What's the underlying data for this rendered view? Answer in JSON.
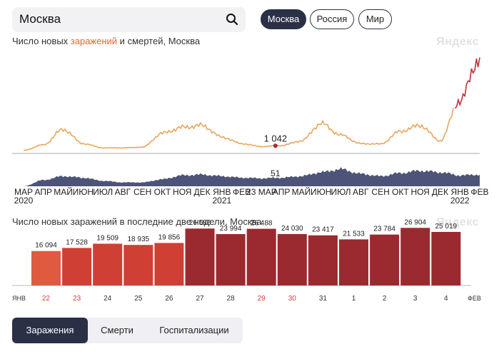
{
  "search": {
    "value": "Москва"
  },
  "region_buttons": [
    {
      "label": "Москва",
      "active": true
    },
    {
      "label": "Россия",
      "active": false
    },
    {
      "label": "Мир",
      "active": false
    }
  ],
  "main_chart": {
    "title_prefix": "Число новых ",
    "title_highlight": "заражений",
    "title_middle": " и ",
    "title_bold": "смертей",
    "title_suffix": ", Москва",
    "watermark": "Яндекс",
    "infection_marker_label": "1 042",
    "death_marker_label": "51",
    "infection_color": "#e8a65c",
    "infection_recent_color": "#c0303a",
    "death_color": "#4d5478",
    "month_labels": [
      "МАР",
      "АПР",
      "МАЙ",
      "ИЮН",
      "ИЮЛ",
      "АВГ",
      "СЕН",
      "ОКТ",
      "НОЯ",
      "ДЕК",
      "ЯНВ",
      "ФЕВ",
      "МАР",
      "АПР",
      "МАЙ",
      "ИЮН",
      "ИЮЛ",
      "АВГ",
      "СЕН",
      "ОКТ",
      "НОЯ",
      "ДЕК",
      "ЯНВ",
      "ФЕВ"
    ],
    "marker_date_label": "23 МАР",
    "year_labels": [
      "2020",
      "2021",
      "2022"
    ]
  },
  "chart_data": [
    {
      "type": "area",
      "title": "Число новых заражений и смертей, Москва",
      "xlabel": "",
      "ylabel": "",
      "series": [
        {
          "name": "заражений",
          "approximate_monthly_values": [
            {
              "x": "2020-03",
              "y": 50
            },
            {
              "x": "2020-04",
              "y": 1500
            },
            {
              "x": "2020-05",
              "y": 5500
            },
            {
              "x": "2020-06",
              "y": 1800
            },
            {
              "x": "2020-07",
              "y": 700
            },
            {
              "x": "2020-08",
              "y": 700
            },
            {
              "x": "2020-09",
              "y": 900
            },
            {
              "x": "2020-10",
              "y": 4500
            },
            {
              "x": "2020-11",
              "y": 6000
            },
            {
              "x": "2020-12",
              "y": 6500
            },
            {
              "x": "2021-01",
              "y": 3500
            },
            {
              "x": "2021-02",
              "y": 1800
            },
            {
              "x": "2021-03",
              "y": 1042
            },
            {
              "x": "2021-04",
              "y": 1300
            },
            {
              "x": "2021-05",
              "y": 2500
            },
            {
              "x": "2021-06",
              "y": 7000
            },
            {
              "x": "2021-07",
              "y": 4000
            },
            {
              "x": "2021-08",
              "y": 1800
            },
            {
              "x": "2021-09",
              "y": 1700
            },
            {
              "x": "2021-10",
              "y": 5000
            },
            {
              "x": "2021-11",
              "y": 6500
            },
            {
              "x": "2021-12",
              "y": 2500
            },
            {
              "x": "2022-01",
              "y": 13000
            },
            {
              "x": "2022-02",
              "y": 24000
            }
          ]
        },
        {
          "name": "смертей",
          "approximate_monthly_values": [
            {
              "x": "2020-03",
              "y": 0
            },
            {
              "x": "2020-04",
              "y": 40
            },
            {
              "x": "2020-05",
              "y": 65
            },
            {
              "x": "2020-06",
              "y": 55
            },
            {
              "x": "2020-07",
              "y": 35
            },
            {
              "x": "2020-08",
              "y": 25
            },
            {
              "x": "2020-09",
              "y": 25
            },
            {
              "x": "2020-10",
              "y": 45
            },
            {
              "x": "2020-11",
              "y": 70
            },
            {
              "x": "2020-12",
              "y": 75
            },
            {
              "x": "2021-01",
              "y": 65
            },
            {
              "x": "2021-02",
              "y": 55
            },
            {
              "x": "2021-03",
              "y": 51
            },
            {
              "x": "2021-04",
              "y": 55
            },
            {
              "x": "2021-05",
              "y": 65
            },
            {
              "x": "2021-06",
              "y": 90
            },
            {
              "x": "2021-07",
              "y": 110
            },
            {
              "x": "2021-08",
              "y": 80
            },
            {
              "x": "2021-09",
              "y": 65
            },
            {
              "x": "2021-10",
              "y": 85
            },
            {
              "x": "2021-11",
              "y": 100
            },
            {
              "x": "2021-12",
              "y": 90
            },
            {
              "x": "2022-01",
              "y": 70
            },
            {
              "x": "2022-02",
              "y": 75
            }
          ]
        }
      ],
      "annotations": [
        {
          "label": "1 042",
          "x": "2021-03-23",
          "series": "заражений"
        },
        {
          "label": "51",
          "x": "2021-03-23",
          "series": "смертей"
        }
      ]
    },
    {
      "type": "bar",
      "title": "Число новых заражений в последние две недели, Москва",
      "xlabel": "",
      "ylabel": "",
      "ylim": [
        0,
        30000
      ],
      "categories": [
        "22",
        "23",
        "24",
        "25",
        "26",
        "27",
        "28",
        "29",
        "30",
        "31",
        "1",
        "2",
        "3",
        "4"
      ],
      "values": [
        16094,
        17528,
        19509,
        18935,
        19856,
        26586,
        23994,
        26488,
        24030,
        23417,
        21533,
        23784,
        26904,
        25019
      ],
      "value_labels": [
        "16 094",
        "17 528",
        "19 509",
        "18 935",
        "19 856",
        "26 586",
        "23 994",
        "26 488",
        "24 030",
        "23 417",
        "21 533",
        "23 784",
        "26 904",
        "25 019"
      ],
      "category_label_colors": [
        "#e03a3e",
        "#e03a3e",
        "#333333",
        "#333333",
        "#333333",
        "#333333",
        "#333333",
        "#e03a3e",
        "#e03a3e",
        "#333333",
        "#333333",
        "#333333",
        "#333333",
        "#333333"
      ],
      "bar_colors": [
        "#e05a40",
        "#cf3f34",
        "#cf3f34",
        "#cf3f34",
        "#cf3f34",
        "#9a2a2f",
        "#9a2a2f",
        "#9a2a2f",
        "#9a2a2f",
        "#9a2a2f",
        "#9a2a2f",
        "#9a2a2f",
        "#9a2a2f",
        "#9a2a2f"
      ],
      "left_month_label": "ЯНВ",
      "right_month_label": "ФЕВ"
    }
  ],
  "bar_chart": {
    "title": "Число новых заражений в последние две недели, Москва",
    "watermark": "Яндекс"
  },
  "tabs": [
    {
      "label": "Заражения",
      "active": true
    },
    {
      "label": "Смерти",
      "active": false
    },
    {
      "label": "Госпитализации",
      "active": false
    }
  ]
}
